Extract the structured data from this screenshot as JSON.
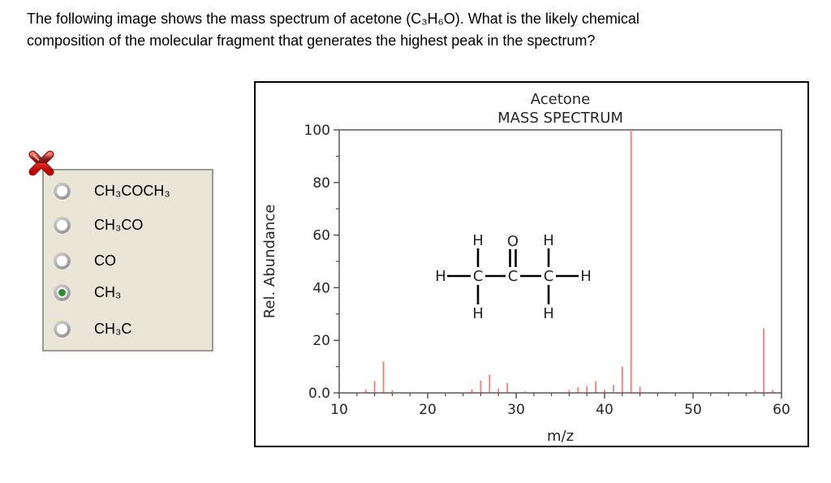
{
  "question": {
    "line1": "The following image shows the mass spectrum of acetone (C₃H₆O). What is the likely chemical",
    "line2": "composition of the molecular fragment that generates the highest peak in the spectrum?"
  },
  "answer_panel": {
    "close_icon": "red-x-icon",
    "selected_color": "#2a8c2a",
    "options": [
      {
        "label": "CH₃COCH₃",
        "selected": false
      },
      {
        "label": "CH₃CO",
        "selected": false
      },
      {
        "label": "CO",
        "selected": false
      },
      {
        "label": "CH₃",
        "selected": true
      },
      {
        "label": "CH₃C",
        "selected": false
      }
    ]
  },
  "chart_data": {
    "type": "bar",
    "title": "Acetone",
    "subtitle": "MASS SPECTRUM",
    "xlabel": "m/z",
    "ylabel": "Rel. Abundance",
    "xlim": [
      10,
      60
    ],
    "ylim": [
      0,
      100
    ],
    "grid": false,
    "legend": "none",
    "x_ticks": [
      10,
      20,
      30,
      40,
      50,
      60
    ],
    "x_minor_step": 2,
    "y_ticks": [
      {
        "v": 0,
        "label": "0.0"
      },
      {
        "v": 20,
        "label": "20"
      },
      {
        "v": 40,
        "label": "40"
      },
      {
        "v": 60,
        "label": "60"
      },
      {
        "v": 80,
        "label": "80"
      },
      {
        "v": 100,
        "label": "100"
      }
    ],
    "y_minor": [
      10,
      30,
      50,
      70,
      90
    ],
    "peak_color": "#f47c7c",
    "peaks": [
      {
        "mz": 13,
        "intensity": 1.3
      },
      {
        "mz": 14,
        "intensity": 4.5
      },
      {
        "mz": 15,
        "intensity": 12.0
      },
      {
        "mz": 16,
        "intensity": 1.0
      },
      {
        "mz": 25,
        "intensity": 1.4
      },
      {
        "mz": 26,
        "intensity": 4.8
      },
      {
        "mz": 27,
        "intensity": 7.0
      },
      {
        "mz": 28,
        "intensity": 1.6
      },
      {
        "mz": 29,
        "intensity": 3.8
      },
      {
        "mz": 31,
        "intensity": 0.6
      },
      {
        "mz": 36,
        "intensity": 1.2
      },
      {
        "mz": 37,
        "intensity": 2.2
      },
      {
        "mz": 38,
        "intensity": 2.7
      },
      {
        "mz": 39,
        "intensity": 4.5
      },
      {
        "mz": 40,
        "intensity": 1.2
      },
      {
        "mz": 41,
        "intensity": 3.0
      },
      {
        "mz": 42,
        "intensity": 10.0
      },
      {
        "mz": 43,
        "intensity": 100.0
      },
      {
        "mz": 44,
        "intensity": 2.4
      },
      {
        "mz": 57,
        "intensity": 0.9
      },
      {
        "mz": 58,
        "intensity": 24.5
      },
      {
        "mz": 59,
        "intensity": 1.1
      }
    ],
    "molecule": {
      "name": "acetone structural formula",
      "atoms": [
        {
          "id": "HL",
          "symbol": "H"
        },
        {
          "id": "C1",
          "symbol": "C"
        },
        {
          "id": "C2",
          "symbol": "C"
        },
        {
          "id": "C3",
          "symbol": "C"
        },
        {
          "id": "HR",
          "symbol": "H"
        },
        {
          "id": "O",
          "symbol": "O"
        },
        {
          "id": "HT1",
          "symbol": "H"
        },
        {
          "id": "HT3",
          "symbol": "H"
        },
        {
          "id": "HB1",
          "symbol": "H"
        },
        {
          "id": "HB3",
          "symbol": "H"
        }
      ]
    }
  }
}
